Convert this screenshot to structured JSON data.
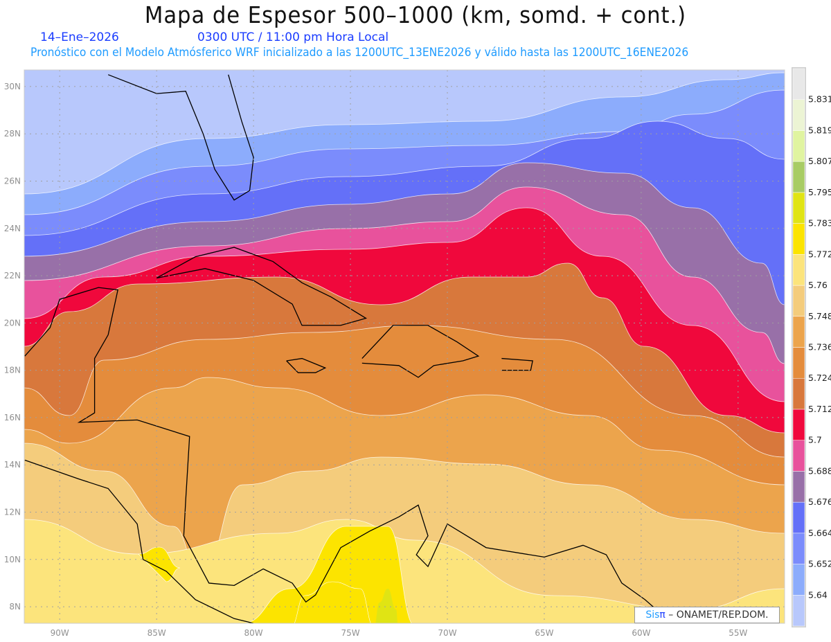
{
  "header": {
    "title": "Mapa de Espesor 500–1000 (km, somd. + cont.)",
    "date": "14–Ene–2026",
    "time": "0300 UTC / 11:00 pm Hora Local",
    "forecast_info": "Pronóstico con el Modelo Atmósferico WRF inicializado a las 1200UTC_13ENE2026 y válido hasta las  1200UTC_16ENE2026"
  },
  "map": {
    "lon_range": [
      -91.83,
      -52.6
    ],
    "lat_range": [
      7.3,
      30.7
    ],
    "lon_ticks": [
      {
        "value": -90,
        "label": "90W"
      },
      {
        "value": -85,
        "label": "85W"
      },
      {
        "value": -80,
        "label": "80W"
      },
      {
        "value": -75,
        "label": "75W"
      },
      {
        "value": -70,
        "label": "70W"
      },
      {
        "value": -65,
        "label": "65W"
      },
      {
        "value": -60,
        "label": "60W"
      },
      {
        "value": -55,
        "label": "55W"
      }
    ],
    "lat_ticks": [
      {
        "value": 30,
        "label": "30N"
      },
      {
        "value": 28,
        "label": "28N"
      },
      {
        "value": 26,
        "label": "26N"
      },
      {
        "value": 24,
        "label": "24N"
      },
      {
        "value": 22,
        "label": "22N"
      },
      {
        "value": 20,
        "label": "20N"
      },
      {
        "value": 18,
        "label": "18N"
      },
      {
        "value": 16,
        "label": "16N"
      },
      {
        "value": 14,
        "label": "14N"
      },
      {
        "value": 12,
        "label": "12N"
      },
      {
        "value": 10,
        "label": "10N"
      },
      {
        "value": 8,
        "label": "8N"
      }
    ],
    "grid_color": "#a0a0a0",
    "coast_color": "#000000"
  },
  "colorbar": {
    "labels": [
      "5.64",
      "5.652",
      "5.664",
      "5.676",
      "5.688",
      "5.7",
      "5.712",
      "5.724",
      "5.736",
      "5.748",
      "5.76",
      "5.772",
      "5.783",
      "5.795",
      "5.807",
      "5.819",
      "5.831"
    ],
    "colors": [
      "#b8c8fc",
      "#8cacfc",
      "#7b8cfc",
      "#6470f8",
      "#9870a8",
      "#e8529c",
      "#f0083c",
      "#d8783c",
      "#e48c3c",
      "#eca44c",
      "#f4cc7c",
      "#fce47c",
      "#fce400",
      "#e0e414",
      "#a8cc64",
      "#e0f4a0",
      "#ecf4d4",
      "#e8e8e8"
    ]
  },
  "credit": {
    "sis": "Sis",
    "pi": "π",
    "org": " –  ONAMET/REP.DOM."
  }
}
